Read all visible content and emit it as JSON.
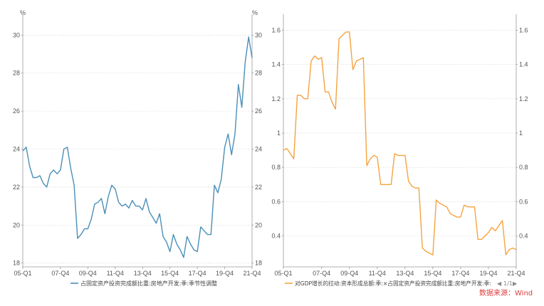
{
  "chart_data": [
    {
      "type": "line",
      "y_unit": "%",
      "y_unit_right": "%",
      "ylim": [
        17.8,
        30.8
      ],
      "yticks": [
        18,
        20,
        22,
        24,
        26,
        28,
        30
      ],
      "xtick_labels": [
        "05-Q1",
        "07-Q4",
        "09-Q4",
        "11-Q4",
        "13-Q4",
        "15-Q4",
        "17-Q4",
        "19-Q4",
        "21-Q4"
      ],
      "xtick_positions": [
        0,
        11,
        19,
        27,
        35,
        43,
        51,
        59,
        67
      ],
      "grid": true,
      "legend_position": "bottom",
      "series": [
        {
          "name": "占固定资产投资完成额比重:房地产开发:季:季节性调整",
          "color": "#4a8fb8",
          "values": [
            23.9,
            24.1,
            23.1,
            22.5,
            22.5,
            22.6,
            22.2,
            22.0,
            22.7,
            22.9,
            22.7,
            22.9,
            24.0,
            24.1,
            23.0,
            22.1,
            19.3,
            19.5,
            19.8,
            19.8,
            20.3,
            21.1,
            21.2,
            21.4,
            20.6,
            21.5,
            22.1,
            21.9,
            21.2,
            21.0,
            21.1,
            20.9,
            21.3,
            21.0,
            21.0,
            20.8,
            21.4,
            20.7,
            20.4,
            20.1,
            20.6,
            19.4,
            19.1,
            18.6,
            19.5,
            19.0,
            18.7,
            18.3,
            19.4,
            19.0,
            18.7,
            18.6,
            19.9,
            19.7,
            19.5,
            19.5,
            22.1,
            21.7,
            22.4,
            24.1,
            24.8,
            23.7,
            24.8,
            27.4,
            26.2,
            28.6,
            29.9,
            28.8
          ]
        }
      ]
    },
    {
      "type": "line",
      "ylim": [
        0.22,
        1.66
      ],
      "yticks": [
        0.4,
        0.6,
        0.8,
        1,
        1.2,
        1.4,
        1.6
      ],
      "xtick_labels": [
        "05-Q1",
        "07-Q4",
        "09-Q4",
        "11-Q4",
        "13-Q4",
        "15-Q4",
        "17-Q4",
        "19-Q4",
        "21-Q4"
      ],
      "xtick_positions": [
        0,
        11,
        19,
        27,
        35,
        43,
        51,
        59,
        67
      ],
      "grid": true,
      "legend_position": "bottom",
      "series": [
        {
          "name": "对GDP增长的拉动:资本形成总额:季:×占固定资产投资完成额比重:房地产开发:季:",
          "color": "#f5a340",
          "values": [
            0.9,
            0.91,
            0.88,
            0.85,
            1.22,
            1.22,
            1.2,
            1.2,
            1.42,
            1.45,
            1.43,
            1.44,
            1.24,
            1.24,
            1.18,
            1.14,
            1.55,
            1.57,
            1.59,
            1.59,
            1.37,
            1.42,
            1.43,
            1.44,
            0.81,
            0.85,
            0.87,
            0.86,
            0.7,
            0.7,
            0.7,
            0.7,
            0.88,
            0.87,
            0.87,
            0.87,
            0.72,
            0.69,
            0.68,
            0.68,
            0.33,
            0.31,
            0.3,
            0.29,
            0.61,
            0.59,
            0.58,
            0.57,
            0.53,
            0.52,
            0.51,
            0.51,
            0.58,
            0.57,
            0.57,
            0.57,
            0.38,
            0.38,
            0.4,
            0.42,
            0.45,
            0.43,
            0.46,
            0.49,
            0.29,
            0.32,
            0.33,
            0.32
          ]
        }
      ],
      "pager": "1/1"
    }
  ],
  "source_note": "数据来源：Wind"
}
